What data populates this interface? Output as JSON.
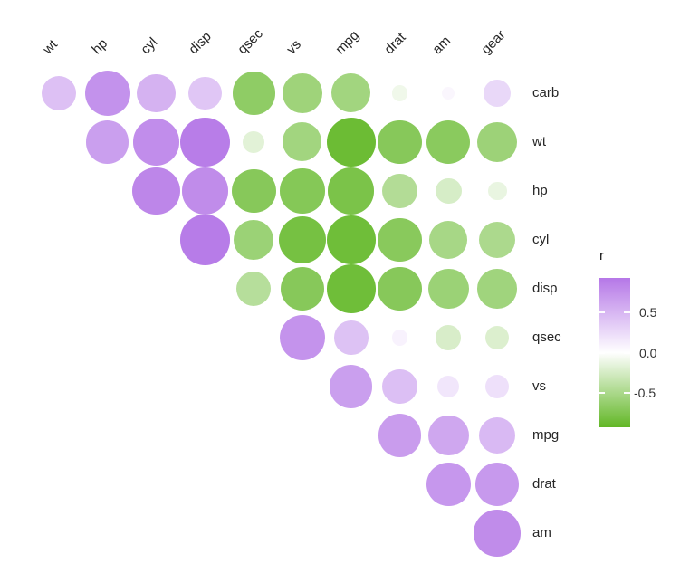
{
  "chart_data": {
    "type": "scatter",
    "subtype": "correlation-bubble-matrix",
    "columns": [
      "wt",
      "hp",
      "cyl",
      "disp",
      "qsec",
      "vs",
      "mpg",
      "drat",
      "am",
      "gear"
    ],
    "rows": [
      "carb",
      "wt",
      "hp",
      "cyl",
      "disp",
      "qsec",
      "vs",
      "mpg",
      "drat",
      "am"
    ],
    "matrix": [
      [
        0.43,
        0.75,
        0.53,
        0.39,
        -0.66,
        -0.57,
        -0.55,
        -0.09,
        0.06,
        0.27
      ],
      [
        null,
        0.66,
        0.78,
        0.89,
        -0.17,
        -0.55,
        -0.87,
        -0.71,
        -0.69,
        -0.58
      ],
      [
        null,
        null,
        0.83,
        0.79,
        -0.71,
        -0.72,
        -0.78,
        -0.45,
        -0.24,
        -0.13
      ],
      [
        null,
        null,
        null,
        0.9,
        -0.59,
        -0.81,
        -0.85,
        -0.7,
        -0.52,
        -0.49
      ],
      [
        null,
        null,
        null,
        null,
        -0.43,
        -0.71,
        -0.85,
        -0.71,
        -0.59,
        -0.56
      ],
      [
        null,
        null,
        null,
        null,
        null,
        0.74,
        0.42,
        0.09,
        -0.23,
        -0.21
      ],
      [
        null,
        null,
        null,
        null,
        null,
        null,
        0.66,
        0.44,
        0.17,
        0.21
      ],
      [
        null,
        null,
        null,
        null,
        null,
        null,
        null,
        0.68,
        0.6,
        0.48
      ],
      [
        null,
        null,
        null,
        null,
        null,
        null,
        null,
        null,
        0.71,
        0.7
      ],
      [
        null,
        null,
        null,
        null,
        null,
        null,
        null,
        null,
        null,
        0.79
      ]
    ],
    "size_encoding": "circle area proportional to |r|",
    "grid": "off",
    "background": "#ffffff",
    "colors": {
      "positive_end": "#af6de5",
      "negative_end": "#56b216",
      "midpoint": "#ffffff"
    },
    "legend": {
      "title": "r",
      "position": "right",
      "tick_labels": [
        "0.5",
        "0.0",
        "-0.5"
      ],
      "tick_values": [
        0.5,
        0.0,
        -0.5
      ],
      "limits": [
        -0.93,
        0.93
      ]
    }
  }
}
